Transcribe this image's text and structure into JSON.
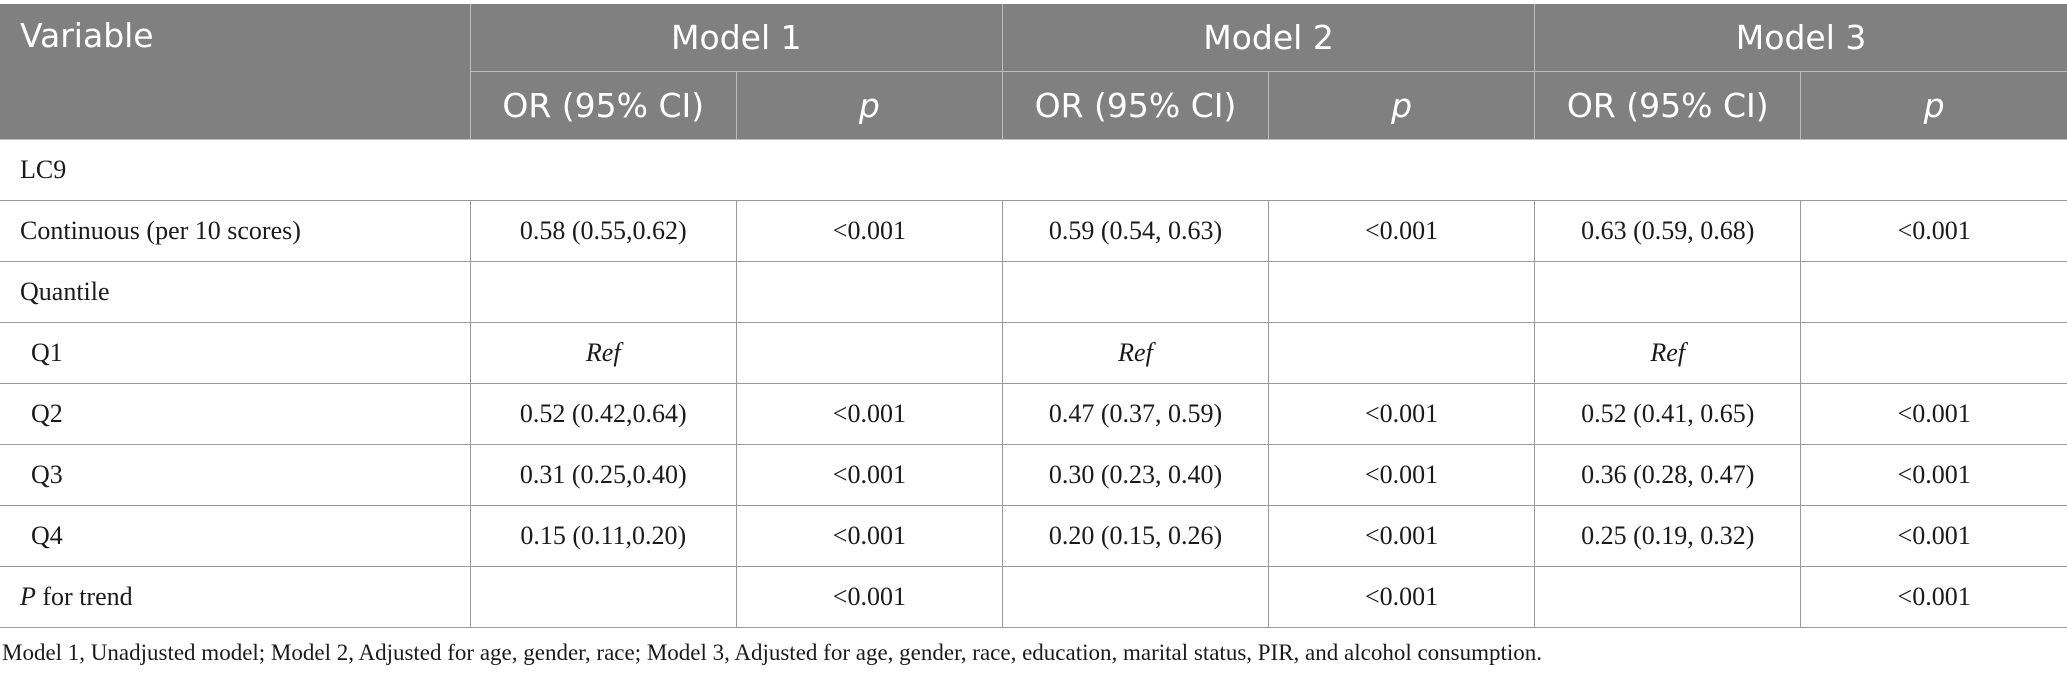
{
  "header": {
    "variable": "Variable",
    "models": [
      "Model 1",
      "Model 2",
      "Model 3"
    ],
    "or_label": "OR (95% CI)",
    "p_label": "p"
  },
  "section_label": "LC9",
  "continuous": {
    "label": "Continuous (per 10 scores)",
    "values": [
      "0.58 (0.55,0.62)",
      "<0.001",
      "0.59 (0.54, 0.63)",
      "<0.001",
      "0.63 (0.59, 0.68)",
      "<0.001"
    ]
  },
  "quantile_label": "Quantile",
  "q1": {
    "label": "Q1",
    "values": [
      "Ref",
      "",
      "Ref",
      "",
      "Ref",
      ""
    ]
  },
  "q2": {
    "label": "Q2",
    "values": [
      "0.52 (0.42,0.64)",
      "<0.001",
      "0.47 (0.37, 0.59)",
      "<0.001",
      "0.52 (0.41, 0.65)",
      "<0.001"
    ]
  },
  "q3": {
    "label": "Q3",
    "values": [
      "0.31 (0.25,0.40)",
      "<0.001",
      "0.30 (0.23, 0.40)",
      "<0.001",
      "0.36 (0.28, 0.47)",
      "<0.001"
    ]
  },
  "q4": {
    "label": "Q4",
    "values": [
      "0.15 (0.11,0.20)",
      "<0.001",
      "0.20 (0.15, 0.26)",
      "<0.001",
      "0.25 (0.19, 0.32)",
      "<0.001"
    ]
  },
  "trend": {
    "label_p": "P",
    "label_rest": " for trend",
    "values": [
      "",
      "<0.001",
      "",
      "<0.001",
      "",
      "<0.001"
    ]
  },
  "footnote": "Model 1, Unadjusted model; Model 2, Adjusted for age, gender, race; Model 3, Adjusted for age, gender, race, education, marital status, PIR, and alcohol consumption."
}
